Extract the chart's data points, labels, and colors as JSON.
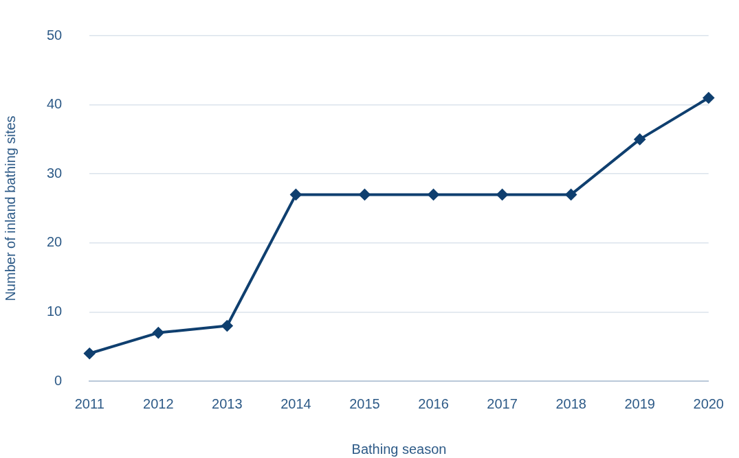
{
  "chart_data": {
    "type": "line",
    "xlabel": "Bathing season",
    "ylabel": "Number of inland bathing sites",
    "categories": [
      "2011",
      "2012",
      "2013",
      "2014",
      "2015",
      "2016",
      "2017",
      "2018",
      "2019",
      "2020"
    ],
    "series": [
      {
        "color": "#0f3f6f",
        "values": [
          4,
          7,
          8,
          27,
          27,
          27,
          27,
          27,
          35,
          41
        ]
      }
    ],
    "ylim": [
      0,
      50
    ],
    "yticks": [
      0,
      10,
      20,
      30,
      40,
      50
    ],
    "grid": "y",
    "legend": false,
    "marker": "diamond",
    "line_style": "solid"
  }
}
